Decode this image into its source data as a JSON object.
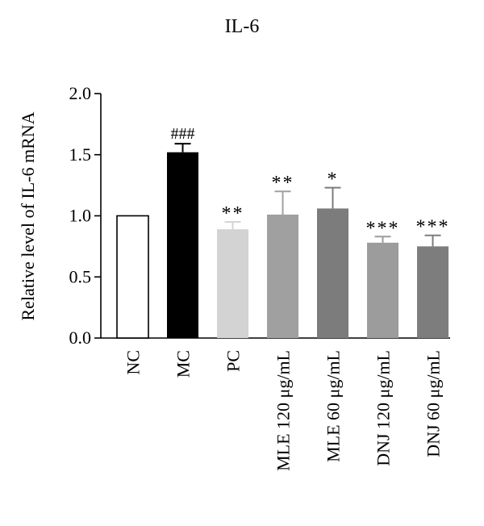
{
  "chart_data": {
    "type": "bar",
    "title": "IL-6",
    "xlabel": "",
    "ylabel": "Relative level of IL-6 mRNA",
    "ylim": [
      0,
      2.0
    ],
    "yticks": [
      "0.0",
      "0.5",
      "1.0",
      "1.5",
      "2.0"
    ],
    "ytick_values": [
      0,
      0.5,
      1.0,
      1.5,
      2.0
    ],
    "categories": [
      "NC",
      "MC",
      "PC",
      "MLE 120 μg/mL",
      "MLE 60 μg/mL",
      "DNJ 120 μg/mL",
      "DNJ 60 μg/mL"
    ],
    "values": [
      1.0,
      1.52,
      0.89,
      1.01,
      1.06,
      0.78,
      0.75
    ],
    "errors": [
      0,
      0.07,
      0.06,
      0.19,
      0.17,
      0.05,
      0.09
    ],
    "annotations": [
      "",
      "###",
      "**",
      "**",
      "*",
      "***",
      "***"
    ],
    "colors": [
      "#ffffff",
      "#000000",
      "#d3d3d3",
      "#a0a0a0",
      "#7c7c7c",
      "#9c9c9c",
      "#7d7d7d"
    ],
    "grid": false,
    "legend": "none"
  }
}
